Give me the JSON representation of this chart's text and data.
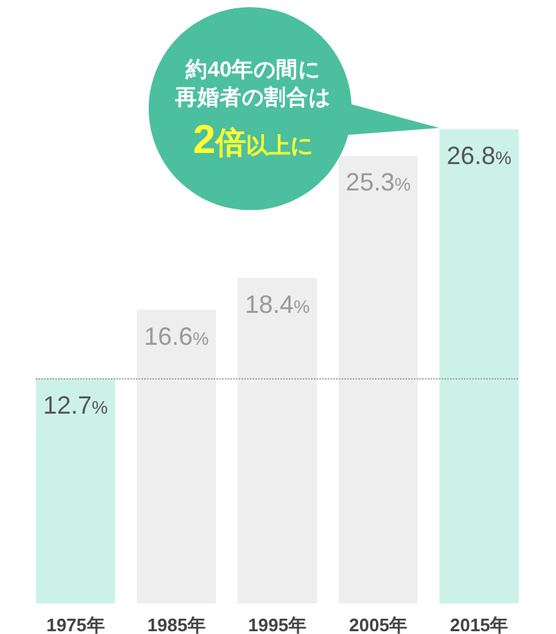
{
  "chart_data": {
    "type": "bar",
    "categories": [
      "1975年",
      "1985年",
      "1995年",
      "2005年",
      "2015年"
    ],
    "values": [
      12.7,
      16.6,
      18.4,
      25.3,
      26.8
    ],
    "colors": [
      "#ccf2e8",
      "#eeeeee",
      "#eeeeee",
      "#eeeeee",
      "#ccf2e8"
    ],
    "value_labels": [
      "12.7%",
      "16.6%",
      "18.4%",
      "25.3%",
      "26.8%"
    ],
    "ref_lines": [
      {
        "axis": "y",
        "value": 12.7,
        "color": "#999999",
        "line_style": "dotted"
      }
    ],
    "annotations": [
      "約40年の間に再婚者の割合は",
      "2倍以上に"
    ]
  }
}
